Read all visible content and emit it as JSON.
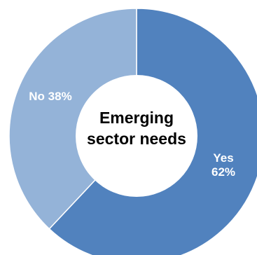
{
  "chart_data": {
    "type": "pie",
    "title": "Emerging sector needs",
    "title_lines": [
      "Emerging",
      "sector needs"
    ],
    "hole": true,
    "slices": [
      {
        "label": "Yes",
        "value": 62,
        "display_lines": [
          "Yes",
          "62%"
        ],
        "color": "#5182be"
      },
      {
        "label": "No",
        "value": 38,
        "display_lines": [
          "No 38%"
        ],
        "color": "#94b3d8"
      }
    ]
  }
}
